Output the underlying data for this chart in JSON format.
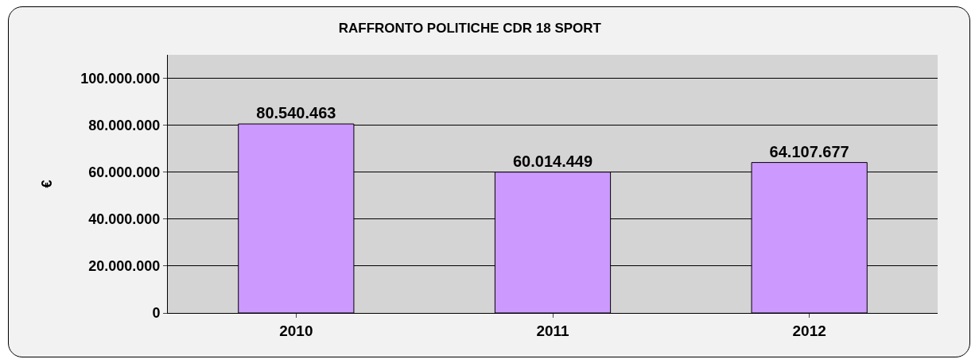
{
  "chart_data": {
    "type": "bar",
    "title": "RAFFRONTO POLITICHE CDR 18 SPORT",
    "ylabel": "€",
    "categories": [
      "2010",
      "2011",
      "2012"
    ],
    "values": [
      80540463,
      60014449,
      64107677
    ],
    "value_labels": [
      "80.540.463",
      "60.014.449",
      "64.107.677"
    ],
    "color": "#cc99ff",
    "ylim": [
      0,
      110000000
    ],
    "yticks": [
      {
        "value": 0,
        "label": "0"
      },
      {
        "value": 20000000,
        "label": "20.000.000"
      },
      {
        "value": 40000000,
        "label": "40.000.000"
      },
      {
        "value": 60000000,
        "label": "60.000.000"
      },
      {
        "value": 80000000,
        "label": "80.000.000"
      },
      {
        "value": 100000000,
        "label": "100.000.000"
      }
    ],
    "grid": "y"
  }
}
